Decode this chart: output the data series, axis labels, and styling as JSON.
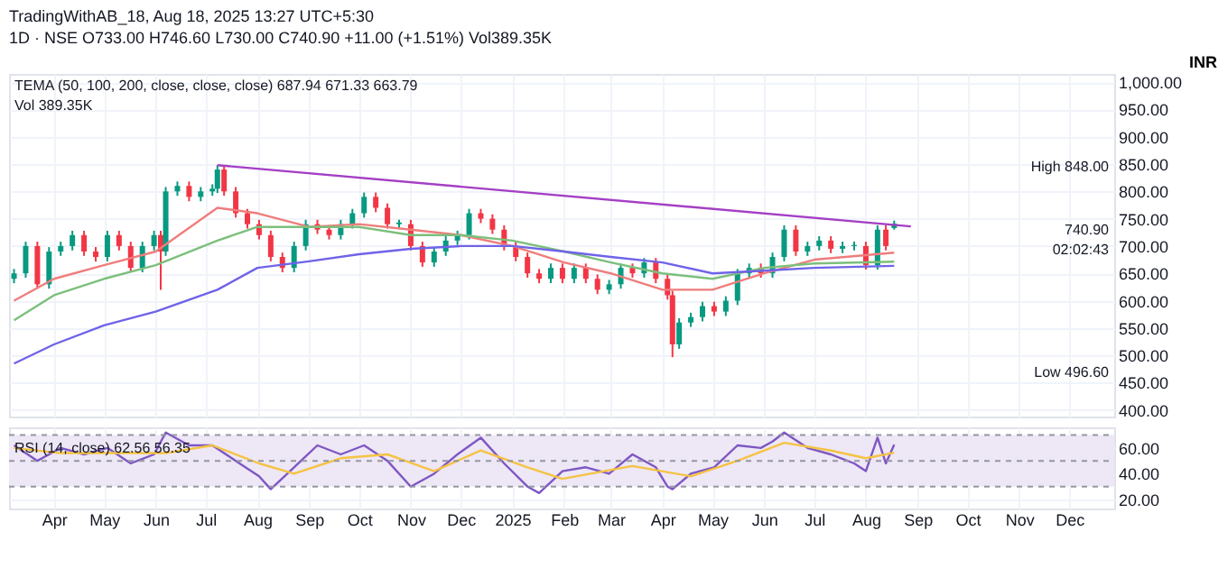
{
  "chart_data": [
    {
      "type": "candlestick",
      "title": "TradingWithAB_18, Aug 18, 2025 13:27 UTC+5:30",
      "subtitle": "1D · NSE  O733.00 H746.60 L730.00 C740.90 +11.00 (+1.51%) Vol389.35K",
      "ylabel": "INR",
      "grid": true,
      "tick_labels": "y",
      "xlim": [
        "2024-03-05",
        "2025-12-28"
      ],
      "ylim": [
        388,
        1015
      ],
      "xticks": [
        {
          "value": "2024-04-01",
          "label": null
        },
        {
          "value": "2024-05-01",
          "label": null
        },
        {
          "value": "2024-06-01",
          "label": null
        },
        {
          "value": "2024-07-01",
          "label": null
        },
        {
          "value": "2024-08-01",
          "label": null
        },
        {
          "value": "2024-09-01",
          "label": null
        },
        {
          "value": "2024-10-01",
          "label": null
        },
        {
          "value": "2024-11-01",
          "label": null
        },
        {
          "value": "2024-12-01",
          "label": null
        },
        {
          "value": "2025-01-01",
          "label": null
        },
        {
          "value": "2025-02-01",
          "label": null
        },
        {
          "value": "2025-03-01",
          "label": null
        },
        {
          "value": "2025-04-01",
          "label": null
        },
        {
          "value": "2025-05-01",
          "label": null
        },
        {
          "value": "2025-06-01",
          "label": null
        },
        {
          "value": "2025-07-01",
          "label": null
        },
        {
          "value": "2025-08-01",
          "label": null
        },
        {
          "value": "2025-09-01",
          "label": null
        },
        {
          "value": "2025-10-01",
          "label": null
        },
        {
          "value": "2025-11-01",
          "label": null
        },
        {
          "value": "2025-12-01",
          "label": null
        }
      ],
      "yticks": [
        {
          "value": 400,
          "label": "400.00"
        },
        {
          "value": 450,
          "label": "450.00"
        },
        {
          "value": 500,
          "label": "500.00"
        },
        {
          "value": 550,
          "label": "550.00"
        },
        {
          "value": 600,
          "label": "600.00"
        },
        {
          "value": 650,
          "label": "650.00"
        },
        {
          "value": 700,
          "label": "700.00"
        },
        {
          "value": 750,
          "label": "750.00"
        },
        {
          "value": 800,
          "label": "800.00"
        },
        {
          "value": 850,
          "label": "850.00"
        },
        {
          "value": 900,
          "label": "900.00"
        },
        {
          "value": 950,
          "label": "950.00"
        },
        {
          "value": 1000,
          "label": "1,000.00"
        }
      ],
      "annotations": [
        "TEMA (50, 100, 200, close, close, close)  687.94  671.33  663.79",
        "Vol  389.35K",
        "High 848.00",
        "740.90",
        "02:02:43",
        "Low 496.60"
      ],
      "series": [
        {
          "type": "candlestick",
          "x": [
            "2024-03-08",
            "2024-03-15",
            "2024-03-22",
            "2024-03-29",
            "2024-04-05",
            "2024-04-12",
            "2024-04-19",
            "2024-04-26",
            "2024-05-03",
            "2024-05-10",
            "2024-05-17",
            "2024-05-24",
            "2024-05-31",
            "2024-06-04",
            "2024-06-07",
            "2024-06-14",
            "2024-06-21",
            "2024-06-28",
            "2024-07-05",
            "2024-07-08",
            "2024-07-12",
            "2024-07-19",
            "2024-07-26",
            "2024-08-02",
            "2024-08-09",
            "2024-08-16",
            "2024-08-23",
            "2024-08-30",
            "2024-09-06",
            "2024-09-13",
            "2024-09-20",
            "2024-09-27",
            "2024-10-04",
            "2024-10-11",
            "2024-10-18",
            "2024-10-25",
            "2024-11-01",
            "2024-11-08",
            "2024-11-15",
            "2024-11-22",
            "2024-11-29",
            "2024-12-06",
            "2024-12-13",
            "2024-12-20",
            "2024-12-27",
            "2025-01-03",
            "2025-01-10",
            "2025-01-17",
            "2025-01-24",
            "2025-01-31",
            "2025-02-07",
            "2025-02-14",
            "2025-02-21",
            "2025-02-28",
            "2025-03-07",
            "2025-03-14",
            "2025-03-21",
            "2025-03-28",
            "2025-04-04",
            "2025-04-07",
            "2025-04-11",
            "2025-04-18",
            "2025-04-25",
            "2025-05-02",
            "2025-05-09",
            "2025-05-16",
            "2025-05-23",
            "2025-05-30",
            "2025-06-06",
            "2025-06-13",
            "2025-06-20",
            "2025-06-27",
            "2025-07-04",
            "2025-07-11",
            "2025-07-18",
            "2025-07-25",
            "2025-08-01",
            "2025-08-08",
            "2025-08-13",
            "2025-08-18"
          ],
          "ohlc": [
            [
              640,
              658,
              632,
              650
            ],
            [
              650,
              708,
              642,
              700
            ],
            [
              700,
              708,
              622,
              630
            ],
            [
              630,
              698,
              622,
              690
            ],
            [
              690,
              708,
              682,
              700
            ],
            [
              700,
              728,
              692,
              720
            ],
            [
              720,
              728,
              682,
              690
            ],
            [
              690,
              698,
              672,
              680
            ],
            [
              680,
              728,
              672,
              720
            ],
            [
              720,
              728,
              692,
              700
            ],
            [
              700,
              708,
              652,
              660
            ],
            [
              660,
              708,
              652,
              700
            ],
            [
              700,
              728,
              692,
              720
            ],
            [
              720,
              728,
              620,
              690
            ],
            [
              690,
              808,
              682,
              800
            ],
            [
              800,
              818,
              792,
              810
            ],
            [
              810,
              818,
              782,
              790
            ],
            [
              790,
              808,
              782,
              800
            ],
            [
              800,
              813,
              792,
              805
            ],
            [
              805,
              848,
              797,
              840
            ],
            [
              840,
              848,
              792,
              800
            ],
            [
              800,
              808,
              752,
              760
            ],
            [
              760,
              768,
              732,
              740
            ],
            [
              740,
              748,
              712,
              720
            ],
            [
              720,
              728,
              672,
              680
            ],
            [
              680,
              688,
              652,
              660
            ],
            [
              660,
              708,
              652,
              700
            ],
            [
              700,
              748,
              692,
              740
            ],
            [
              740,
              748,
              722,
              730
            ],
            [
              730,
              738,
              712,
              720
            ],
            [
              720,
              748,
              712,
              740
            ],
            [
              740,
              768,
              732,
              760
            ],
            [
              760,
              798,
              752,
              790
            ],
            [
              790,
              798,
              762,
              770
            ],
            [
              770,
              778,
              732,
              740
            ],
            [
              740,
              748,
              732,
              743
            ],
            [
              740,
              748,
              692,
              700
            ],
            [
              700,
              708,
              662,
              670
            ],
            [
              670,
              698,
              662,
              690
            ],
            [
              690,
              718,
              682,
              710
            ],
            [
              710,
              728,
              702,
              720
            ],
            [
              720,
              768,
              712,
              760
            ],
            [
              760,
              768,
              742,
              750
            ],
            [
              750,
              758,
              722,
              730
            ],
            [
              730,
              738,
              692,
              700
            ],
            [
              700,
              708,
              672,
              680
            ],
            [
              680,
              688,
              642,
              650
            ],
            [
              650,
              658,
              632,
              640
            ],
            [
              640,
              668,
              632,
              660
            ],
            [
              660,
              668,
              632,
              640
            ],
            [
              640,
              668,
              632,
              660
            ],
            [
              660,
              668,
              632,
              640
            ],
            [
              640,
              648,
              612,
              620
            ],
            [
              620,
              638,
              612,
              630
            ],
            [
              630,
              668,
              622,
              660
            ],
            [
              660,
              668,
              642,
              650
            ],
            [
              650,
              678,
              642,
              670
            ],
            [
              670,
              678,
              632,
              640
            ],
            [
              640,
              648,
              602,
              610
            ],
            [
              610,
              618,
              496.6,
              520
            ],
            [
              520,
              568,
              512,
              560
            ],
            [
              560,
              578,
              552,
              570
            ],
            [
              570,
              598,
              562,
              590
            ],
            [
              590,
              598,
              572,
              580
            ],
            [
              580,
              608,
              572,
              600
            ],
            [
              600,
              658,
              592,
              650
            ],
            [
              650,
              668,
              642,
              660
            ],
            [
              660,
              668,
              642,
              650
            ],
            [
              650,
              688,
              642,
              680
            ],
            [
              680,
              738,
              672,
              730
            ],
            [
              730,
              738,
              682,
              690
            ],
            [
              690,
              708,
              682,
              700
            ],
            [
              700,
              718,
              692,
              710
            ],
            [
              710,
              718,
              687,
              695
            ],
            [
              695,
              708,
              687,
              700
            ],
            [
              700,
              708,
              692,
              702
            ],
            [
              700,
              708,
              657,
              665
            ],
            [
              665,
              738,
              657,
              730
            ],
            [
              730,
              738,
              692,
              700
            ],
            [
              733,
              746.6,
              730,
              740.9
            ]
          ],
          "colors": [
            "#089981",
            "#089981",
            "#f23645",
            "#089981",
            "#089981",
            "#089981",
            "#f23645",
            "#f23645",
            "#089981",
            "#f23645",
            "#f23645",
            "#089981",
            "#089981",
            "#f23645",
            "#089981",
            "#089981",
            "#f23645",
            "#089981",
            "#089981",
            "#089981",
            "#f23645",
            "#f23645",
            "#f23645",
            "#f23645",
            "#f23645",
            "#f23645",
            "#089981",
            "#089981",
            "#f23645",
            "#f23645",
            "#089981",
            "#089981",
            "#089981",
            "#f23645",
            "#f23645",
            "#089981",
            "#f23645",
            "#f23645",
            "#089981",
            "#089981",
            "#089981",
            "#089981",
            "#f23645",
            "#f23645",
            "#f23645",
            "#f23645",
            "#f23645",
            "#f23645",
            "#089981",
            "#f23645",
            "#089981",
            "#f23645",
            "#f23645",
            "#089981",
            "#089981",
            "#f23645",
            "#089981",
            "#f23645",
            "#f23645",
            "#f23645",
            "#089981",
            "#089981",
            "#089981",
            "#f23645",
            "#089981",
            "#089981",
            "#089981",
            "#f23645",
            "#089981",
            "#089981",
            "#f23645",
            "#089981",
            "#089981",
            "#f23645",
            "#089981",
            "#089981",
            "#f23645",
            "#089981",
            "#f23645",
            "#089981"
          ]
        },
        {
          "type": "line",
          "color": "#ef7d7d",
          "x": [
            "2024-03-08",
            "2024-04-01",
            "2024-05-01",
            "2024-06-01",
            "2024-07-08",
            "2024-08-01",
            "2024-09-01",
            "2024-10-01",
            "2024-11-01",
            "2024-12-01",
            "2025-01-01",
            "2025-02-01",
            "2025-03-01",
            "2025-04-01",
            "2025-05-01",
            "2025-06-01",
            "2025-07-01",
            "2025-08-18"
          ],
          "values": [
            600,
            640,
            665,
            690,
            770,
            760,
            735,
            740,
            730,
            720,
            700,
            670,
            650,
            620,
            620,
            650,
            675,
            687.94
          ]
        },
        {
          "type": "line",
          "color": "#7cbf7c",
          "x": [
            "2024-03-08",
            "2024-04-01",
            "2024-05-01",
            "2024-06-01",
            "2024-07-08",
            "2024-08-01",
            "2024-09-01",
            "2024-10-01",
            "2024-11-01",
            "2024-12-01",
            "2025-01-01",
            "2025-02-01",
            "2025-03-01",
            "2025-04-01",
            "2025-05-01",
            "2025-06-01",
            "2025-07-01",
            "2025-08-18"
          ],
          "values": [
            564,
            610,
            640,
            665,
            710,
            735,
            735,
            735,
            720,
            720,
            710,
            690,
            670,
            650,
            640,
            660,
            668,
            671.33
          ]
        },
        {
          "type": "line",
          "color": "#6f63e8",
          "x": [
            "2024-03-08",
            "2024-04-01",
            "2024-05-01",
            "2024-06-01",
            "2024-07-08",
            "2024-08-01",
            "2024-09-01",
            "2024-10-01",
            "2024-11-01",
            "2024-12-01",
            "2025-01-01",
            "2025-02-01",
            "2025-03-01",
            "2025-04-01",
            "2025-05-01",
            "2025-06-01",
            "2025-07-01",
            "2025-08-18"
          ],
          "values": [
            485,
            520,
            555,
            580,
            620,
            660,
            672,
            685,
            695,
            700,
            700,
            690,
            680,
            670,
            650,
            655,
            660,
            663.79
          ]
        },
        {
          "type": "line",
          "color": "#a43fc4",
          "x": [
            "2024-07-08",
            "2025-08-28"
          ],
          "values": [
            848,
            736
          ]
        }
      ]
    },
    {
      "type": "line",
      "grid": true,
      "xlim": [
        "2024-03-05",
        "2025-12-28"
      ],
      "ylim": [
        13,
        76
      ],
      "xticks": [
        {
          "value": "2024-04-01",
          "label": "Apr"
        },
        {
          "value": "2024-05-01",
          "label": "May"
        },
        {
          "value": "2024-06-01",
          "label": "Jun"
        },
        {
          "value": "2024-07-01",
          "label": "Jul"
        },
        {
          "value": "2024-08-01",
          "label": "Aug"
        },
        {
          "value": "2024-09-01",
          "label": "Sep"
        },
        {
          "value": "2024-10-01",
          "label": "Oct"
        },
        {
          "value": "2024-11-01",
          "label": "Nov"
        },
        {
          "value": "2024-12-01",
          "label": "Dec"
        },
        {
          "value": "2025-01-01",
          "label": "2025"
        },
        {
          "value": "2025-02-01",
          "label": "Feb"
        },
        {
          "value": "2025-03-01",
          "label": "Mar"
        },
        {
          "value": "2025-04-01",
          "label": "Apr"
        },
        {
          "value": "2025-05-01",
          "label": "May"
        },
        {
          "value": "2025-06-01",
          "label": "Jun"
        },
        {
          "value": "2025-07-01",
          "label": "Jul"
        },
        {
          "value": "2025-08-01",
          "label": "Aug"
        },
        {
          "value": "2025-09-01",
          "label": "Sep"
        },
        {
          "value": "2025-10-01",
          "label": "Oct"
        },
        {
          "value": "2025-11-01",
          "label": "Nov"
        },
        {
          "value": "2025-12-01",
          "label": "Dec"
        }
      ],
      "yticks": [
        {
          "value": 20,
          "label": "20.00"
        },
        {
          "value": 40,
          "label": "40.00"
        },
        {
          "value": 60,
          "label": "60.00"
        }
      ],
      "annotations": [
        "RSI (14, close)  62.56  56.35"
      ],
      "bands": [
        {
          "axis": "y",
          "from": 30,
          "to": 70,
          "color": "#ede7f6"
        }
      ],
      "ref_lines": [
        {
          "axis": "y",
          "value": 70,
          "color": "#9598a1",
          "line_style": "dashed"
        },
        {
          "axis": "y",
          "value": 50,
          "color": "#9598a1",
          "line_style": "dashed"
        },
        {
          "axis": "y",
          "value": 30,
          "color": "#9598a1",
          "line_style": "dashed"
        }
      ],
      "series": [
        {
          "color": "#7e57c2",
          "x": [
            "2024-03-08",
            "2024-03-22",
            "2024-04-05",
            "2024-04-19",
            "2024-05-03",
            "2024-05-17",
            "2024-05-31",
            "2024-06-07",
            "2024-06-21",
            "2024-07-05",
            "2024-07-19",
            "2024-08-02",
            "2024-08-09",
            "2024-08-23",
            "2024-09-06",
            "2024-09-20",
            "2024-10-04",
            "2024-10-18",
            "2024-11-01",
            "2024-11-15",
            "2024-11-29",
            "2024-12-13",
            "2024-12-27",
            "2025-01-10",
            "2025-01-17",
            "2025-01-31",
            "2025-02-14",
            "2025-02-28",
            "2025-03-14",
            "2025-03-28",
            "2025-04-04",
            "2025-04-07",
            "2025-04-18",
            "2025-05-02",
            "2025-05-16",
            "2025-05-30",
            "2025-06-06",
            "2025-06-13",
            "2025-06-27",
            "2025-07-11",
            "2025-07-25",
            "2025-08-01",
            "2025-08-08",
            "2025-08-13",
            "2025-08-18"
          ],
          "values": [
            62,
            50,
            60,
            55,
            60,
            48,
            55,
            72,
            62,
            62,
            50,
            38,
            28,
            45,
            62,
            55,
            62,
            50,
            30,
            40,
            55,
            68,
            48,
            30,
            25,
            42,
            45,
            40,
            55,
            45,
            30,
            28,
            40,
            45,
            62,
            60,
            65,
            72,
            60,
            55,
            48,
            42,
            68,
            48,
            62.56
          ]
        },
        {
          "color": "#f5c342",
          "x": [
            "2024-03-08",
            "2024-04-05",
            "2024-05-03",
            "2024-06-07",
            "2024-07-05",
            "2024-08-02",
            "2024-08-23",
            "2024-09-20",
            "2024-10-18",
            "2024-11-15",
            "2024-12-13",
            "2025-01-10",
            "2025-01-31",
            "2025-03-14",
            "2025-04-18",
            "2025-05-16",
            "2025-06-13",
            "2025-07-11",
            "2025-08-01",
            "2025-08-18"
          ],
          "values": [
            60,
            56,
            56,
            56,
            62,
            48,
            40,
            52,
            55,
            42,
            58,
            45,
            36,
            46,
            38,
            50,
            64,
            58,
            52,
            56.35
          ]
        }
      ]
    }
  ]
}
